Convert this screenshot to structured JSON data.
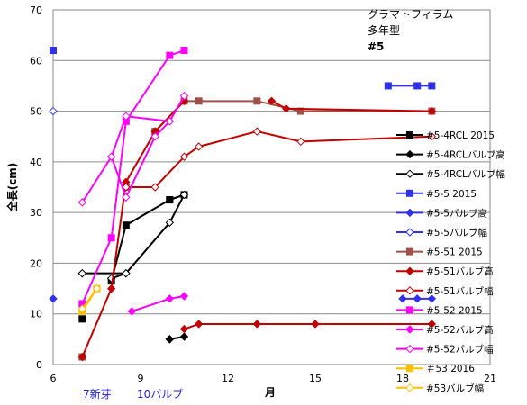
{
  "chart_data": {
    "type": "line",
    "xlabel": "月",
    "ylabel": "全長(cm)",
    "xlim": [
      6,
      21
    ],
    "ylim": [
      0,
      70
    ],
    "x_ticks": [
      "6",
      "9",
      "12",
      "15",
      "18",
      "21"
    ],
    "y_ticks": [
      "0",
      "10",
      "20",
      "30",
      "40",
      "50",
      "60",
      "70"
    ],
    "grid": "horizontal",
    "annotations": [
      "グラマトフィラム",
      "多年型",
      "#5"
    ],
    "footnotes": [
      "7新芽",
      "10バルブ"
    ],
    "series": [
      {
        "name": "#5-4RCL 2015",
        "color": "#000000",
        "marker": "square-filled",
        "segments": [
          [
            [
              7,
              9
            ]
          ],
          [
            [
              8,
              16.5
            ],
            [
              8.5,
              27.5
            ],
            [
              10,
              32.5
            ],
            [
              10.5,
              33.5
            ]
          ],
          [
            [
              10.5,
              33.5
            ],
            [
              10,
              32.5
            ]
          ]
        ]
      },
      {
        "name": "#5-4RCLバルブ高",
        "color": "#000000",
        "marker": "diamond-filled",
        "segments": [
          [
            [
              10,
              5
            ]
          ],
          [
            [
              10.5,
              5.5
            ],
            [
              10,
              5
            ]
          ]
        ]
      },
      {
        "name": "#5-4RCLバルブ幅",
        "color": "#000000",
        "marker": "diamond-open",
        "segments": [
          [
            [
              7,
              18
            ]
          ],
          [
            [
              7,
              18
            ],
            [
              8.5,
              18
            ]
          ],
          [
            [
              8,
              17
            ],
            [
              8.5,
              18
            ]
          ],
          [
            [
              8.5,
              18
            ],
            [
              10,
              28
            ],
            [
              10.5,
              33.5
            ]
          ]
        ]
      },
      {
        "name": "#5-5 2015",
        "color": "#3030ee",
        "marker": "square-filled",
        "segments": [
          [
            [
              6,
              62
            ]
          ],
          [
            [
              17.5,
              55
            ],
            [
              18.5,
              55
            ],
            [
              19,
              55
            ]
          ]
        ]
      },
      {
        "name": "#5-5バルブ高",
        "color": "#3030ee",
        "marker": "diamond-filled",
        "segments": [
          [
            [
              6,
              13
            ]
          ],
          [
            [
              18,
              13
            ],
            [
              18.5,
              13
            ],
            [
              19,
              13
            ]
          ]
        ]
      },
      {
        "name": "#5-5バルブ幅",
        "color": "#3030ee",
        "marker": "diamond-open",
        "segments": [
          [
            [
              6,
              50
            ]
          ]
        ]
      },
      {
        "name": "#5-51 2015",
        "color": "#a0504a",
        "marker": "square-filled",
        "segments": [
          [
            [
              7,
              1.5
            ]
          ],
          [
            [
              8.5,
              35
            ]
          ],
          [
            [
              9.5,
              46
            ],
            [
              10.5,
              52
            ],
            [
              11,
              52
            ],
            [
              13,
              52
            ],
            [
              14.5,
              50
            ],
            [
              19,
              50
            ]
          ]
        ]
      },
      {
        "name": "#5-51バルブ高",
        "color": "#c00000",
        "marker": "diamond-filled",
        "segments": [
          [
            [
              7,
              1.5
            ],
            [
              8,
              15
            ],
            [
              8.5,
              36
            ],
            [
              9.5,
              46
            ],
            [
              10.5,
              52
            ]
          ],
          [
            [
              10.5,
              7
            ],
            [
              11,
              8
            ],
            [
              13,
              8
            ],
            [
              15,
              8
            ],
            [
              19,
              8
            ]
          ],
          [
            [
              13.5,
              52
            ],
            [
              14,
              50.5
            ],
            [
              19,
              50
            ]
          ]
        ]
      },
      {
        "name": "#5-51バルブ幅",
        "color": "#c00000",
        "marker": "diamond-open",
        "segments": [
          [
            [
              8.5,
              35
            ],
            [
              9.5,
              35
            ],
            [
              10.5,
              41
            ],
            [
              11,
              43
            ],
            [
              13,
              46
            ],
            [
              14.5,
              44
            ],
            [
              19,
              45
            ]
          ]
        ]
      },
      {
        "name": "#5-52 2015",
        "color": "#ff00ff",
        "marker": "square-filled",
        "segments": [
          [
            [
              7,
              12
            ],
            [
              8,
              25
            ],
            [
              8.5,
              48
            ],
            [
              10,
              61
            ],
            [
              10.5,
              62
            ]
          ]
        ]
      },
      {
        "name": "#5-52バルブ高",
        "color": "#ff00ff",
        "marker": "diamond-filled",
        "segments": [
          [
            [
              8.7,
              10.5
            ],
            [
              10,
              13
            ],
            [
              10.5,
              13.5
            ]
          ]
        ]
      },
      {
        "name": "#5-52バルブ幅",
        "color": "#ff00ff",
        "marker": "diamond-open",
        "segments": [
          [
            [
              7,
              32
            ],
            [
              8,
              41
            ],
            [
              8.5,
              33
            ],
            [
              9.5,
              45
            ],
            [
              10,
              48
            ],
            [
              10.5,
              53
            ]
          ],
          [
            [
              8,
              41
            ],
            [
              8.5,
              49
            ],
            [
              10,
              48
            ]
          ]
        ]
      },
      {
        "name": "＃53 2016",
        "color": "#ffc000",
        "marker": "square-filled",
        "segments": [
          [
            [
              7,
              10.5
            ],
            [
              7.5,
              15
            ]
          ]
        ]
      },
      {
        "name": "#53バルブ幅",
        "color": "#ffc000",
        "marker": "diamond-open",
        "segments": [
          [
            [
              7,
              11
            ],
            [
              7.5,
              15
            ]
          ]
        ]
      }
    ]
  }
}
